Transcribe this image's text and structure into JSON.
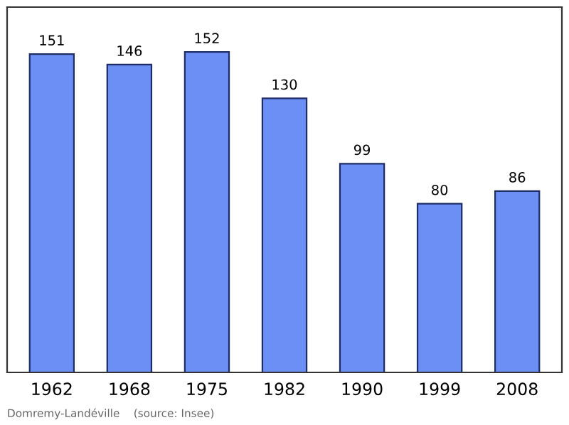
{
  "chart_data": {
    "type": "bar",
    "categories": [
      "1962",
      "1968",
      "1975",
      "1982",
      "1990",
      "1999",
      "2008"
    ],
    "values": [
      151,
      146,
      152,
      130,
      99,
      80,
      86
    ],
    "color": "#6b8ff5",
    "data_labels": true,
    "grid": false,
    "legend": false,
    "annotations": [
      "Domremy-Landéville    (source: Insee)"
    ]
  }
}
